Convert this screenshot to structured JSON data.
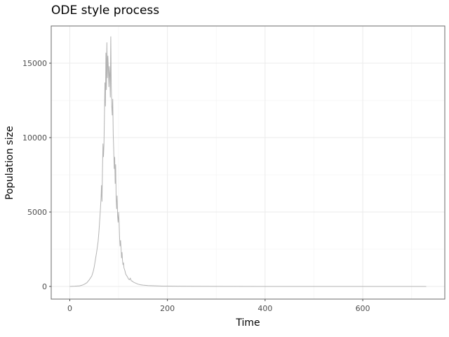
{
  "chart_data": {
    "type": "line",
    "title": "ODE style process",
    "xlabel": "Time",
    "ylabel": "Population size",
    "xlim": [
      -38,
      768
    ],
    "ylim": [
      -850,
      17500
    ],
    "x_ticks": [
      0,
      200,
      400,
      600
    ],
    "y_ticks": [
      0,
      5000,
      10000,
      15000
    ],
    "x_tick_labels": [
      "0",
      "200",
      "400",
      "600"
    ],
    "y_tick_labels": [
      "0",
      "5000",
      "10000",
      "15000"
    ],
    "grid": true,
    "series": [
      {
        "color": "#b3b3b3",
        "x": [
          0,
          10,
          20,
          25,
          30,
          35,
          40,
          45,
          48,
          50,
          52,
          55,
          58,
          60,
          62,
          64,
          65,
          66,
          67,
          68,
          69,
          70,
          71,
          72,
          73,
          74,
          75,
          76,
          77,
          78,
          79,
          80,
          81,
          82,
          83,
          84,
          85,
          86,
          87,
          88,
          89,
          90,
          91,
          92,
          93,
          94,
          95,
          96,
          97,
          98,
          99,
          100,
          101,
          102,
          103,
          104,
          105,
          106,
          107,
          108,
          109,
          110,
          111,
          112,
          113,
          114,
          115,
          116,
          118,
          120,
          122,
          124,
          126,
          128,
          130,
          132,
          135,
          138,
          140,
          145,
          150,
          160,
          170,
          180,
          190,
          200,
          220,
          250,
          300,
          400,
          500,
          600,
          730
        ],
        "y": [
          0,
          15,
          40,
          80,
          150,
          250,
          450,
          700,
          1000,
          1300,
          1700,
          2300,
          3000,
          3800,
          4800,
          5900,
          6800,
          5700,
          7900,
          9600,
          8700,
          9500,
          11500,
          13700,
          12100,
          15700,
          13200,
          16400,
          14000,
          15500,
          14700,
          13400,
          14800,
          14200,
          12700,
          16800,
          13500,
          12100,
          11500,
          12600,
          10200,
          9200,
          7900,
          8700,
          6900,
          8200,
          5900,
          5200,
          6100,
          4700,
          4300,
          5000,
          4400,
          3300,
          2700,
          3100,
          2600,
          1900,
          2300,
          1750,
          1450,
          1600,
          1250,
          1150,
          1050,
          900,
          800,
          750,
          650,
          520,
          450,
          550,
          380,
          360,
          300,
          260,
          220,
          180,
          150,
          110,
          90,
          60,
          45,
          35,
          25,
          20,
          14,
          9,
          5,
          2,
          1,
          0,
          0
        ]
      }
    ]
  }
}
